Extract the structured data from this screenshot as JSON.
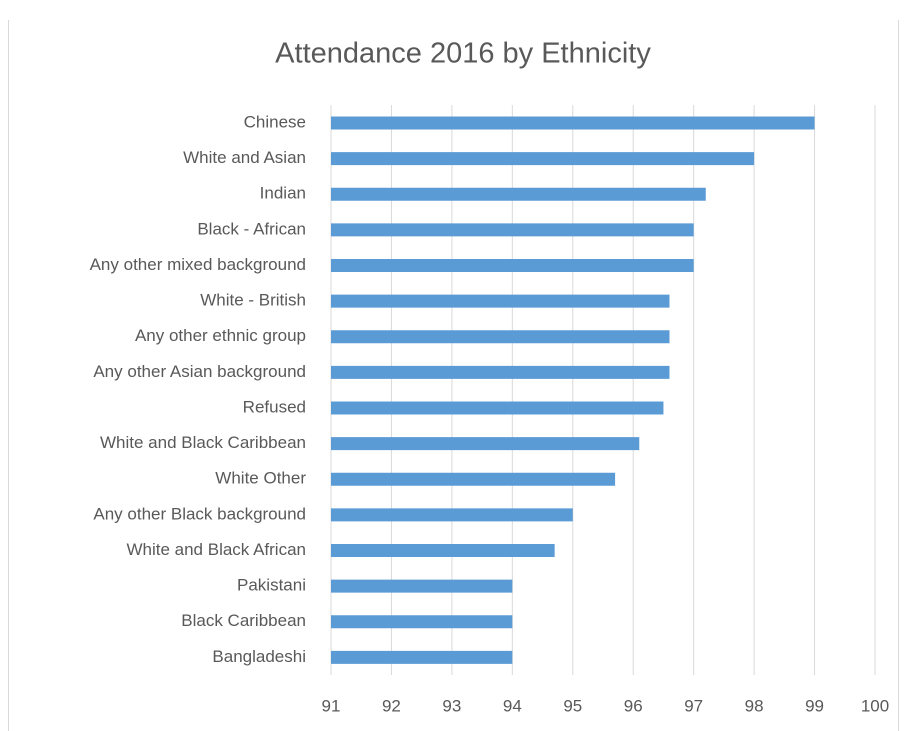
{
  "chart_data": {
    "type": "barh",
    "title": "Attendance 2016 by Ethnicity",
    "categories": [
      "Chinese",
      "White and Asian",
      "Indian",
      "Black - African",
      "Any other mixed background",
      "White - British",
      "Any other ethnic group",
      "Any other Asian background",
      "Refused",
      "White and Black Caribbean",
      "White Other",
      "Any other Black background",
      "White and Black African",
      "Pakistani",
      "Black Caribbean",
      "Bangladeshi"
    ],
    "values": [
      99,
      98,
      97.2,
      97,
      97,
      96.6,
      96.6,
      96.6,
      96.5,
      96.1,
      95.7,
      95,
      94.7,
      94,
      94,
      94
    ],
    "color": "#5b9bd5",
    "xlim": [
      91,
      100
    ],
    "xticks": [
      91,
      92,
      93,
      94,
      95,
      96,
      97,
      98,
      99,
      100
    ],
    "grid": true
  }
}
